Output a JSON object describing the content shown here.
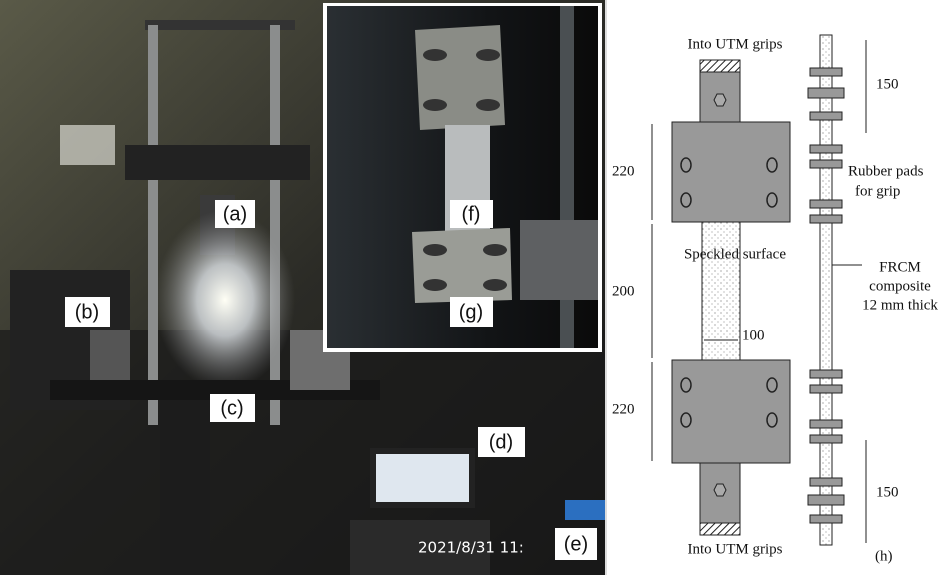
{
  "photo": {
    "labels": [
      "(a)",
      "(b)",
      "(c)",
      "(d)",
      "(e)"
    ],
    "timestamp": "2021/8/31  11:"
  },
  "inset": {
    "labels": [
      "(f)",
      "(g)"
    ]
  },
  "diagram": {
    "top_label": "Into UTM grips",
    "bottom_label": "Into UTM grips",
    "front_dimensions": [
      220,
      200,
      220
    ],
    "width_dimension": 100,
    "surface_label": "Speckled surface",
    "side_dimensions": [
      150,
      150
    ],
    "pad_label": [
      "Rubber pads",
      "for grip"
    ],
    "composite_label": [
      "FRCM",
      "composite",
      "12 mm thick"
    ],
    "panel_label": "(h)"
  }
}
